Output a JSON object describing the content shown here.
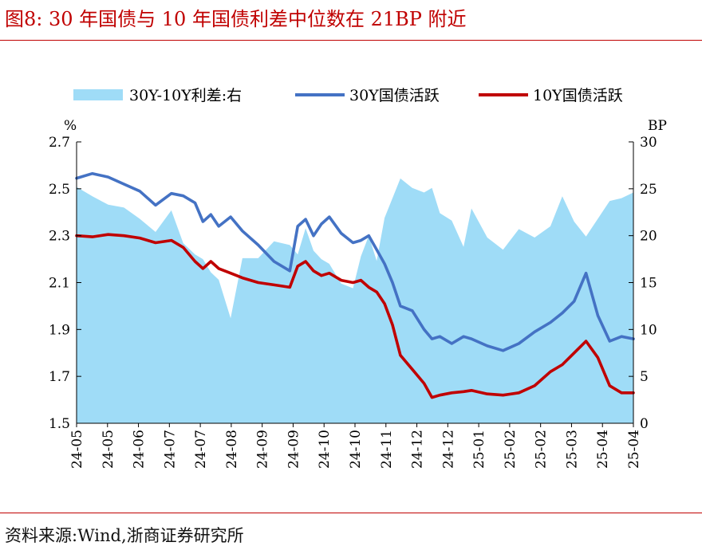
{
  "header": {
    "title": "图8:  30 年国债与 10 年国债利差中位数在 21BP 附近"
  },
  "footer": {
    "source": "资料来源:Wind,浙商证券研究所"
  },
  "chart_data": {
    "type": "line",
    "left_unit": "%",
    "right_unit": "BP",
    "left_ylim": [
      1.5,
      2.7
    ],
    "left_ticks": [
      "1.5",
      "1.7",
      "1.9",
      "2.1",
      "2.3",
      "2.5",
      "2.7"
    ],
    "right_ylim": [
      0,
      30
    ],
    "right_ticks": [
      "0",
      "5",
      "10",
      "15",
      "20",
      "25",
      "30"
    ],
    "x_ticks": [
      "24-05",
      "24-05",
      "24-06",
      "24-07",
      "24-07",
      "24-08",
      "24-09",
      "24-09",
      "24-10",
      "24-10",
      "24-11",
      "24-12",
      "24-12",
      "25-01",
      "25-02",
      "25-02",
      "25-03",
      "25-04",
      "25-04"
    ],
    "legend_position": "top",
    "x_index": [
      0,
      8,
      16,
      24,
      32,
      40,
      48,
      54,
      60,
      64,
      68,
      72,
      78,
      84,
      92,
      100,
      108,
      112,
      116,
      120,
      124,
      128,
      134,
      140,
      144,
      148,
      152,
      156,
      160,
      164,
      170,
      176,
      180,
      184,
      190,
      196,
      200,
      208,
      216,
      224,
      232,
      240,
      246,
      252,
      258,
      264,
      270,
      276,
      282
    ],
    "series": [
      {
        "name": "30Y-10Y利差:右",
        "axis": "right",
        "kind": "area",
        "color": "#9fdcf7",
        "values": [
          25.2,
          24.2,
          23.3,
          23.0,
          21.8,
          20.4,
          22.7,
          19.2,
          18.0,
          17.5,
          16.1,
          15.3,
          11.2,
          17.6,
          17.6,
          19.4,
          19.0,
          18.0,
          20.8,
          18.4,
          17.5,
          17.0,
          14.9,
          14.4,
          17.8,
          20.0,
          17.3,
          21.9,
          24.0,
          26.1,
          25.1,
          24.6,
          25.1,
          22.4,
          21.6,
          18.8,
          22.9,
          19.8,
          18.5,
          20.7,
          19.8,
          21.0,
          24.2,
          21.5,
          19.9,
          21.8,
          23.7,
          24.0,
          24.6
        ]
      },
      {
        "name": "30Y国债活跃",
        "axis": "left",
        "kind": "line",
        "color": "#4472c4",
        "values": [
          2.545,
          2.565,
          2.55,
          2.52,
          2.49,
          2.43,
          2.48,
          2.47,
          2.44,
          2.36,
          2.39,
          2.34,
          2.38,
          2.32,
          2.26,
          2.19,
          2.15,
          2.34,
          2.37,
          2.3,
          2.35,
          2.38,
          2.31,
          2.27,
          2.28,
          2.3,
          2.24,
          2.18,
          2.1,
          2.0,
          1.98,
          1.9,
          1.86,
          1.87,
          1.84,
          1.87,
          1.86,
          1.83,
          1.81,
          1.84,
          1.89,
          1.93,
          1.97,
          2.02,
          2.14,
          1.96,
          1.85,
          1.87,
          1.86
        ]
      },
      {
        "name": "10Y国债活跃",
        "axis": "left",
        "kind": "line",
        "color": "#c00000",
        "values": [
          2.3,
          2.295,
          2.305,
          2.3,
          2.29,
          2.27,
          2.28,
          2.25,
          2.19,
          2.16,
          2.19,
          2.16,
          2.14,
          2.12,
          2.1,
          2.09,
          2.08,
          2.17,
          2.19,
          2.15,
          2.13,
          2.14,
          2.11,
          2.1,
          2.11,
          2.08,
          2.06,
          2.01,
          1.92,
          1.79,
          1.73,
          1.67,
          1.61,
          1.62,
          1.63,
          1.635,
          1.64,
          1.625,
          1.62,
          1.63,
          1.66,
          1.72,
          1.75,
          1.8,
          1.85,
          1.78,
          1.66,
          1.63,
          1.63
        ]
      }
    ]
  }
}
